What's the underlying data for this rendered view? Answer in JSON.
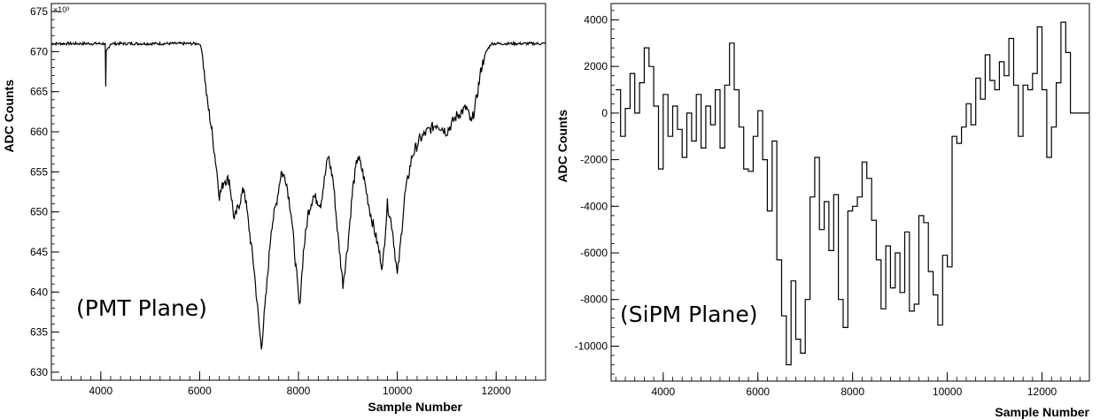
{
  "chart_data": [
    {
      "type": "line",
      "xlabel": "Sample Number",
      "ylabel": "ADC Counts",
      "y_scale_label": "×10³",
      "annotation": "(PMT Plane)",
      "xlim": [
        3000,
        13000
      ],
      "ylim": [
        629,
        676
      ],
      "x_ticks": [
        4000,
        6000,
        8000,
        10000,
        12000
      ],
      "x_tick_labels": [
        "4000",
        "6000",
        "8000",
        "10000",
        "12000"
      ],
      "y_ticks": [
        630,
        635,
        640,
        645,
        650,
        655,
        660,
        665,
        670,
        675
      ],
      "y_tick_labels": [
        "630",
        "635",
        "640",
        "645",
        "650",
        "655",
        "660",
        "665",
        "670",
        "675"
      ],
      "grid": false,
      "series": [
        {
          "x": [
            3000,
            4000,
            4090,
            4100,
            4110,
            4200,
            5000,
            6000,
            6050,
            6150,
            6250,
            6350,
            6400,
            6500,
            6600,
            6700,
            6800,
            6900,
            7000,
            7100,
            7200,
            7250,
            7350,
            7450,
            7550,
            7650,
            7750,
            7850,
            7950,
            8020,
            8100,
            8200,
            8300,
            8450,
            8600,
            8700,
            8800,
            8900,
            9000,
            9100,
            9200,
            9300,
            9450,
            9600,
            9700,
            9800,
            9900,
            10000,
            10050,
            10150,
            10300,
            10450,
            10600,
            10800,
            11000,
            11200,
            11400,
            11500,
            11600,
            11700,
            11800,
            11900,
            12000,
            12200,
            12500,
            12800,
            13000
          ],
          "y": [
            671,
            671,
            671,
            665,
            670,
            671,
            671,
            671,
            670,
            664,
            660,
            655,
            652,
            654,
            654,
            649,
            651,
            653,
            648,
            643,
            636,
            633,
            640,
            648,
            651,
            655,
            654,
            650,
            643,
            638,
            645,
            650,
            652,
            651,
            657,
            654,
            647,
            641,
            646,
            653,
            657,
            655,
            650,
            646,
            643,
            651,
            648,
            642,
            645,
            652,
            657,
            659,
            660,
            661,
            660,
            662,
            663,
            661,
            664,
            668,
            670,
            671,
            671,
            671,
            671,
            671,
            671
          ]
        }
      ]
    },
    {
      "type": "line",
      "xlabel": "Sample Number",
      "ylabel": "ADC Counts",
      "annotation": "(SiPM Plane)",
      "xlim": [
        2900,
        13000
      ],
      "ylim": [
        -11500,
        4700
      ],
      "x_ticks": [
        4000,
        6000,
        8000,
        10000,
        12000
      ],
      "x_tick_labels": [
        "4000",
        "6000",
        "8000",
        "10000",
        "12000"
      ],
      "y_ticks": [
        -10000,
        -8000,
        -6000,
        -4000,
        -2000,
        0,
        2000,
        4000
      ],
      "y_tick_labels": [
        "-10000",
        "-8000",
        "-6000",
        "-4000",
        "-2000",
        "0",
        "2000",
        "4000"
      ],
      "grid": false,
      "series": [
        {
          "x": [
            3000,
            3100,
            3200,
            3300,
            3400,
            3500,
            3600,
            3700,
            3800,
            3900,
            4000,
            4100,
            4200,
            4300,
            4400,
            4500,
            4600,
            4700,
            4800,
            4900,
            5000,
            5100,
            5200,
            5300,
            5400,
            5500,
            5600,
            5700,
            5800,
            5900,
            6000,
            6100,
            6200,
            6300,
            6400,
            6500,
            6600,
            6700,
            6800,
            6900,
            7000,
            7100,
            7200,
            7300,
            7400,
            7500,
            7600,
            7700,
            7800,
            7900,
            8000,
            8100,
            8200,
            8300,
            8400,
            8500,
            8600,
            8700,
            8800,
            8900,
            9000,
            9100,
            9200,
            9300,
            9400,
            9500,
            9600,
            9700,
            9800,
            9900,
            10000,
            10100,
            10200,
            10300,
            10400,
            10500,
            10600,
            10700,
            10800,
            10900,
            11000,
            11100,
            11200,
            11300,
            11400,
            11500,
            11600,
            11700,
            11800,
            11900,
            12000,
            12100,
            12200,
            12300,
            12400,
            12500,
            12600,
            12700,
            12800,
            12900
          ],
          "y": [
            1000,
            -1000,
            200,
            1700,
            0,
            1300,
            2800,
            2000,
            300,
            -2400,
            800,
            -1000,
            300,
            -700,
            -1900,
            0,
            -1200,
            800,
            -1500,
            300,
            -500,
            1000,
            -1500,
            1200,
            3000,
            1000,
            -600,
            -2400,
            -2500,
            -1000,
            100,
            -2000,
            -4200,
            -1200,
            -6300,
            -8700,
            -10800,
            -7200,
            -9700,
            -10300,
            -8000,
            -3600,
            -1900,
            -5000,
            -3800,
            -5900,
            -3500,
            -8000,
            -9200,
            -4200,
            -4000,
            -3600,
            -2100,
            -2800,
            -4600,
            -6300,
            -8400,
            -5700,
            -7500,
            -6000,
            -7700,
            -5100,
            -8500,
            -8200,
            -4400,
            -4700,
            -6800,
            -7800,
            -9100,
            -6100,
            -6600,
            -1000,
            -1300,
            -600,
            400,
            -500,
            1500,
            600,
            2500,
            1400,
            1000,
            2200,
            1600,
            3200,
            1200,
            -1000,
            1200,
            1000,
            1700,
            3700,
            1000,
            -1900,
            -600,
            1300,
            3900,
            2600,
            0,
            0,
            0,
            0
          ]
        }
      ]
    }
  ]
}
